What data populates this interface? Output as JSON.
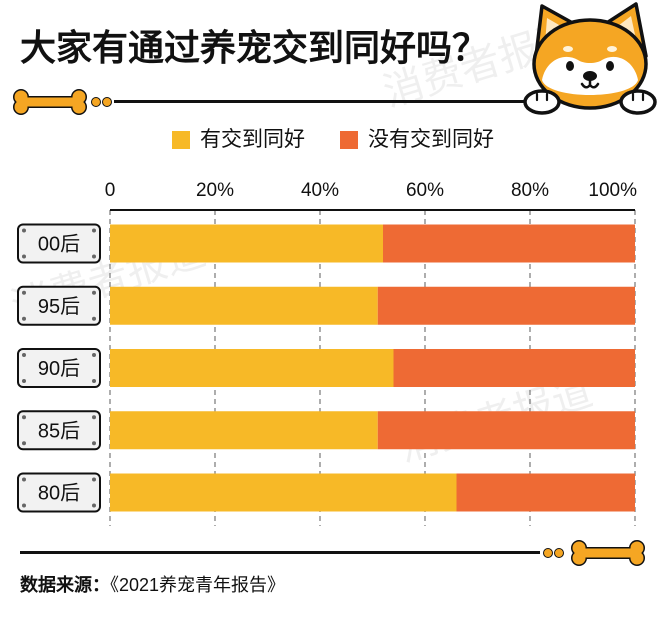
{
  "chart_data": {
    "type": "bar",
    "orientation": "horizontal",
    "stacking": "percent",
    "title": "大家有通过养宠交到同好吗？",
    "xlabel": "",
    "ylabel": "",
    "categories": [
      "00后",
      "95后",
      "90后",
      "85后",
      "80后"
    ],
    "series": [
      {
        "name": "有交到同好",
        "values": [
          52,
          51,
          54,
          51,
          66
        ],
        "color": "#F7B927"
      },
      {
        "name": "没有交到同好",
        "values": [
          48,
          49,
          46,
          49,
          34
        ],
        "color": "#EE6A34"
      }
    ],
    "xlim": [
      0,
      100
    ],
    "xtick_values": [
      0,
      20,
      40,
      60,
      80,
      100
    ],
    "xtick_labels": [
      "0",
      "20%",
      "40%",
      "60%",
      "80%",
      "100%"
    ],
    "x_axis_position": "top",
    "grid": "dashed vertical",
    "legend_position": "top"
  },
  "source": {
    "label": "数据来源：",
    "value": "《2021养宠青年报告》"
  },
  "watermark": "消费者报道",
  "icons": {
    "bone": "bone-icon",
    "dog": "shiba-dog-icon",
    "dot": "dot-icon"
  },
  "colors": {
    "text": "#111111",
    "background": "#FFFFFF",
    "bone": "#F5A623",
    "dog_fur": "#F5A623",
    "label_box": "#F2F2F2"
  }
}
